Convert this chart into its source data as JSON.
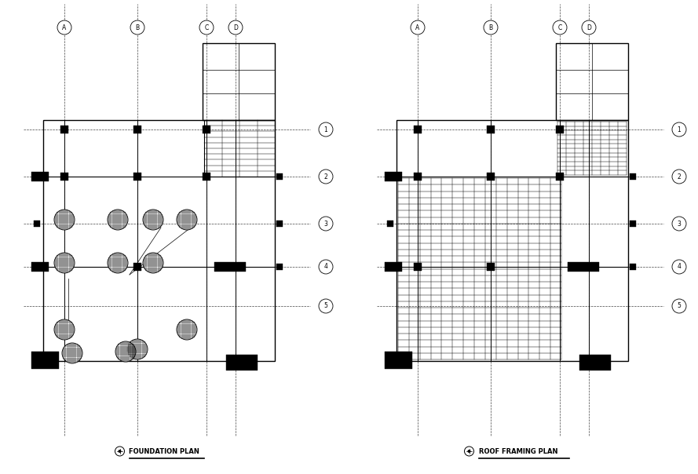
{
  "bg_color": "#ffffff",
  "line_color": "#000000",
  "title1": "FOUNDATION PLAN",
  "title2": "ROOF FRAMING PLAN",
  "col_labels": [
    "A",
    "B",
    "C",
    "D"
  ],
  "row_labels": [
    "1",
    "2",
    "3",
    "4",
    "5"
  ],
  "figw": 8.89,
  "figh": 6.04,
  "dpi": 100
}
